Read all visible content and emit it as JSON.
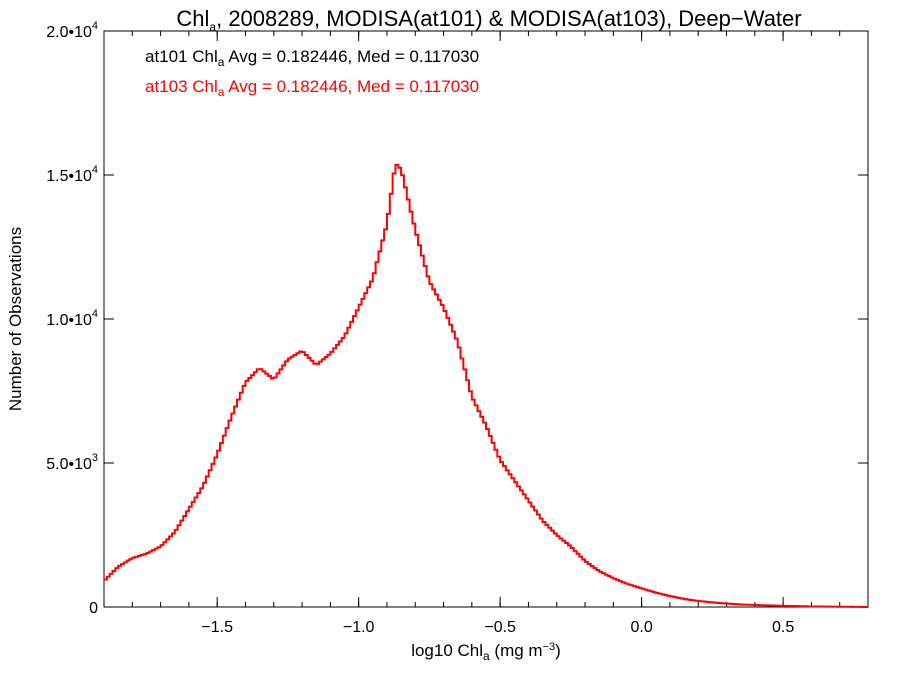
{
  "chart_data": {
    "type": "histogram",
    "title": {
      "prefix": "Chl",
      "sub": "a",
      "rest": ", 2008289, MODISA(at101) & MODISA(at103), Deep−Water"
    },
    "xlabel": {
      "prefix": "log10 Chl",
      "sub": "a",
      "unit_pre": " (mg m",
      "unit_sup": "−3",
      "unit_post": ")"
    },
    "ylabel": "Number of Observations",
    "xlim": [
      -1.9,
      0.8
    ],
    "ylim": [
      0,
      20000
    ],
    "x_ticks": [
      {
        "value": -1.5,
        "label": "−1.5"
      },
      {
        "value": -1.0,
        "label": "−1.0"
      },
      {
        "value": -0.5,
        "label": "−0.5"
      },
      {
        "value": 0.0,
        "label": "0.0"
      },
      {
        "value": 0.5,
        "label": "0.5"
      }
    ],
    "y_ticks": [
      {
        "value": 0,
        "mant": "0",
        "exp": ""
      },
      {
        "value": 5000,
        "mant": "5.0•10",
        "exp": "3"
      },
      {
        "value": 10000,
        "mant": "1.0•10",
        "exp": "4"
      },
      {
        "value": 15000,
        "mant": "1.5•10",
        "exp": "4"
      },
      {
        "value": 20000,
        "mant": "2.0•10",
        "exp": "4"
      }
    ],
    "grid": false,
    "legend_position": "top-left",
    "legend": [
      {
        "name": "at101",
        "prefix": "at101 Chl",
        "sub": "a",
        "rest": " Avg = 0.182446, Med = 0.117030",
        "color": "#000000"
      },
      {
        "name": "at103",
        "prefix": "at103 Chl",
        "sub": "a",
        "rest": " Avg = 0.182446, Med = 0.117030",
        "color": "#ff0000"
      }
    ],
    "series": [
      {
        "name": "at103",
        "color": "#ff0000",
        "x": [
          -1.9,
          -1.85,
          -1.8,
          -1.75,
          -1.7,
          -1.65,
          -1.6,
          -1.55,
          -1.5,
          -1.45,
          -1.4,
          -1.35,
          -1.3,
          -1.25,
          -1.2,
          -1.15,
          -1.1,
          -1.05,
          -1.0,
          -0.95,
          -0.9,
          -0.87,
          -0.85,
          -0.8,
          -0.75,
          -0.7,
          -0.65,
          -0.6,
          -0.55,
          -0.5,
          -0.45,
          -0.4,
          -0.35,
          -0.3,
          -0.25,
          -0.2,
          -0.15,
          -0.1,
          -0.05,
          0.0,
          0.05,
          0.1,
          0.15,
          0.2,
          0.25,
          0.3,
          0.35,
          0.4,
          0.45,
          0.5,
          0.55,
          0.6,
          0.7,
          0.8
        ],
        "y": [
          900,
          1400,
          1700,
          1850,
          2100,
          2600,
          3400,
          4200,
          5300,
          6600,
          7800,
          8300,
          7900,
          8600,
          8900,
          8400,
          8800,
          9400,
          10400,
          11400,
          13300,
          15400,
          15200,
          13100,
          11300,
          10400,
          9200,
          7300,
          6300,
          5100,
          4400,
          3700,
          3000,
          2500,
          2100,
          1600,
          1250,
          1000,
          800,
          650,
          500,
          380,
          280,
          210,
          160,
          120,
          90,
          70,
          55,
          40,
          30,
          20,
          10,
          0
        ]
      }
    ]
  }
}
